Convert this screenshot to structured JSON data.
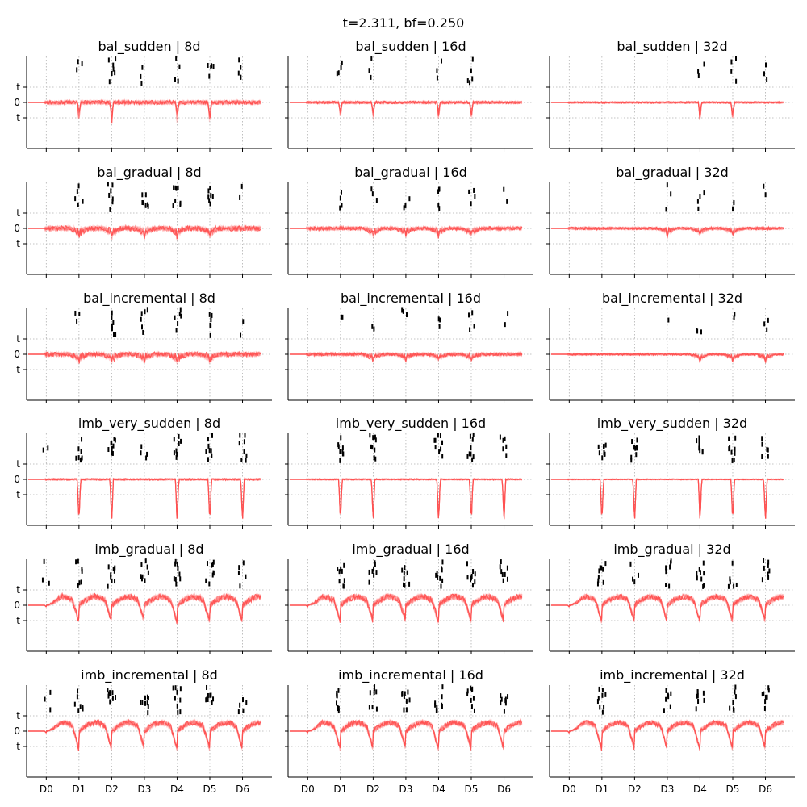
{
  "figure": {
    "suptitle": "t=2.311, bf=0.250"
  },
  "axes": {
    "xticks": [
      "D0",
      "D1",
      "D2",
      "D3",
      "D4",
      "D5",
      "D6"
    ],
    "yticks": [
      "t",
      "0",
      "t"
    ]
  },
  "colors": {
    "trace": "#ff4d4d",
    "marker": "#000000",
    "grid": "#b0b0b0",
    "axis": "#000000"
  },
  "chart_data": [
    {
      "type": "line",
      "title": "bal_sudden | 8d",
      "drift": "sudden",
      "dip_days": [
        1,
        2,
        4,
        5
      ],
      "dip_depth": 0.95,
      "noise": 0.22,
      "markers": [
        [
          1,
          3
        ],
        [
          2,
          7
        ],
        [
          3,
          3
        ],
        [
          4,
          4
        ],
        [
          5,
          5
        ],
        [
          6,
          5
        ]
      ]
    },
    {
      "type": "line",
      "title": "bal_sudden | 16d",
      "drift": "sudden",
      "dip_days": [
        1,
        2,
        4,
        5
      ],
      "dip_depth": 0.8,
      "noise": 0.15,
      "markers": [
        [
          1,
          4
        ],
        [
          2,
          3
        ],
        [
          4,
          3
        ],
        [
          5,
          5
        ]
      ]
    },
    {
      "type": "line",
      "title": "bal_sudden | 32d",
      "drift": "sudden",
      "dip_days": [
        4,
        5
      ],
      "dip_depth": 0.8,
      "noise": 0.1,
      "markers": [
        [
          4,
          3
        ],
        [
          5,
          4
        ],
        [
          6,
          3
        ]
      ]
    },
    {
      "type": "line",
      "title": "bal_gradual | 8d",
      "drift": "gradual",
      "dip_days": [
        1,
        2,
        3,
        4,
        5
      ],
      "dip_depth": 0.5,
      "noise": 0.28,
      "markers": [
        [
          1,
          6
        ],
        [
          2,
          8
        ],
        [
          3,
          7
        ],
        [
          4,
          8
        ],
        [
          5,
          7
        ],
        [
          6,
          2
        ]
      ]
    },
    {
      "type": "line",
      "title": "bal_gradual | 16d",
      "drift": "gradual",
      "dip_days": [
        2,
        3,
        4,
        5
      ],
      "dip_depth": 0.45,
      "noise": 0.2,
      "markers": [
        [
          1,
          4
        ],
        [
          2,
          3
        ],
        [
          3,
          3
        ],
        [
          4,
          5
        ],
        [
          5,
          4
        ],
        [
          6,
          2
        ]
      ]
    },
    {
      "type": "line",
      "title": "bal_gradual | 32d",
      "drift": "gradual",
      "dip_days": [
        3,
        4,
        5
      ],
      "dip_depth": 0.4,
      "noise": 0.15,
      "markers": [
        [
          3,
          3
        ],
        [
          4,
          4
        ],
        [
          5,
          2
        ],
        [
          6,
          2
        ]
      ]
    },
    {
      "type": "line",
      "title": "bal_incremental | 8d",
      "drift": "incremental",
      "dip_days": [
        1,
        2,
        3,
        4,
        5
      ],
      "dip_depth": 0.45,
      "noise": 0.25,
      "markers": [
        [
          1,
          3
        ],
        [
          2,
          7
        ],
        [
          3,
          6
        ],
        [
          4,
          6
        ],
        [
          5,
          6
        ],
        [
          6,
          2
        ]
      ]
    },
    {
      "type": "line",
      "title": "bal_incremental | 16d",
      "drift": "incremental",
      "dip_days": [
        2,
        3,
        4,
        5
      ],
      "dip_depth": 0.35,
      "noise": 0.18,
      "markers": [
        [
          1,
          2
        ],
        [
          2,
          2
        ],
        [
          3,
          3
        ],
        [
          4,
          3
        ],
        [
          5,
          4
        ],
        [
          6,
          2
        ]
      ]
    },
    {
      "type": "line",
      "title": "bal_incremental | 32d",
      "drift": "incremental",
      "dip_days": [
        4,
        5,
        6
      ],
      "dip_depth": 0.4,
      "noise": 0.12,
      "markers": [
        [
          3,
          1
        ],
        [
          4,
          3
        ],
        [
          5,
          2
        ],
        [
          6,
          3
        ]
      ]
    },
    {
      "type": "line",
      "title": "imb_very_sudden | 8d",
      "drift": "very_sudden",
      "dip_days": [
        1,
        2,
        4,
        5,
        6
      ],
      "dip_depth": 1.6,
      "noise": 0.1,
      "markers": [
        [
          0,
          2
        ],
        [
          1,
          8
        ],
        [
          2,
          9
        ],
        [
          3,
          4
        ],
        [
          4,
          9
        ],
        [
          5,
          8
        ],
        [
          6,
          8
        ]
      ]
    },
    {
      "type": "line",
      "title": "imb_very_sudden | 16d",
      "drift": "very_sudden",
      "dip_days": [
        1,
        2,
        4,
        5,
        6
      ],
      "dip_depth": 1.6,
      "noise": 0.08,
      "markers": [
        [
          1,
          9
        ],
        [
          2,
          9
        ],
        [
          4,
          9
        ],
        [
          5,
          9
        ],
        [
          6,
          6
        ]
      ]
    },
    {
      "type": "line",
      "title": "imb_very_sudden | 32d",
      "drift": "very_sudden",
      "dip_days": [
        1,
        2,
        4,
        5,
        6
      ],
      "dip_depth": 1.6,
      "noise": 0.06,
      "markers": [
        [
          1,
          9
        ],
        [
          2,
          9
        ],
        [
          4,
          9
        ],
        [
          5,
          9
        ],
        [
          6,
          6
        ]
      ]
    },
    {
      "type": "line",
      "title": "imb_gradual | 8d",
      "drift": "cyclic",
      "dip_days": [
        1,
        2,
        3,
        4,
        5,
        6
      ],
      "dip_depth": 0.9,
      "noise": 0.2,
      "markers": [
        [
          0,
          3
        ],
        [
          1,
          7
        ],
        [
          2,
          9
        ],
        [
          3,
          8
        ],
        [
          4,
          9
        ],
        [
          5,
          9
        ],
        [
          6,
          5
        ]
      ]
    },
    {
      "type": "line",
      "title": "imb_gradual | 16d",
      "drift": "cyclic",
      "dip_days": [
        1,
        2,
        3,
        4,
        5,
        6
      ],
      "dip_depth": 0.9,
      "noise": 0.2,
      "markers": [
        [
          1,
          9
        ],
        [
          2,
          8
        ],
        [
          3,
          8
        ],
        [
          4,
          9
        ],
        [
          5,
          9
        ],
        [
          6,
          8
        ]
      ]
    },
    {
      "type": "line",
      "title": "imb_gradual | 32d",
      "drift": "cyclic",
      "dip_days": [
        1,
        2,
        3,
        4,
        5,
        6
      ],
      "dip_depth": 0.9,
      "noise": 0.18,
      "markers": [
        [
          1,
          9
        ],
        [
          2,
          4
        ],
        [
          3,
          7
        ],
        [
          4,
          9
        ],
        [
          5,
          6
        ],
        [
          6,
          8
        ]
      ]
    },
    {
      "type": "line",
      "title": "imb_incremental | 8d",
      "drift": "cyclic",
      "dip_days": [
        1,
        2,
        3,
        4,
        5,
        6
      ],
      "dip_depth": 1.0,
      "noise": 0.18,
      "markers": [
        [
          0,
          3
        ],
        [
          1,
          7
        ],
        [
          2,
          9
        ],
        [
          3,
          9
        ],
        [
          4,
          9
        ],
        [
          5,
          9
        ],
        [
          6,
          5
        ]
      ]
    },
    {
      "type": "line",
      "title": "imb_incremental | 16d",
      "drift": "cyclic",
      "dip_days": [
        1,
        2,
        3,
        4,
        5,
        6
      ],
      "dip_depth": 1.0,
      "noise": 0.18,
      "markers": [
        [
          1,
          9
        ],
        [
          2,
          8
        ],
        [
          3,
          9
        ],
        [
          4,
          9
        ],
        [
          5,
          9
        ],
        [
          6,
          8
        ]
      ]
    },
    {
      "type": "line",
      "title": "imb_incremental | 32d",
      "drift": "cyclic",
      "dip_days": [
        1,
        2,
        3,
        4,
        5,
        6
      ],
      "dip_depth": 1.0,
      "noise": 0.16,
      "markers": [
        [
          1,
          9
        ],
        [
          3,
          7
        ],
        [
          4,
          8
        ],
        [
          5,
          7
        ],
        [
          6,
          8
        ]
      ]
    }
  ]
}
